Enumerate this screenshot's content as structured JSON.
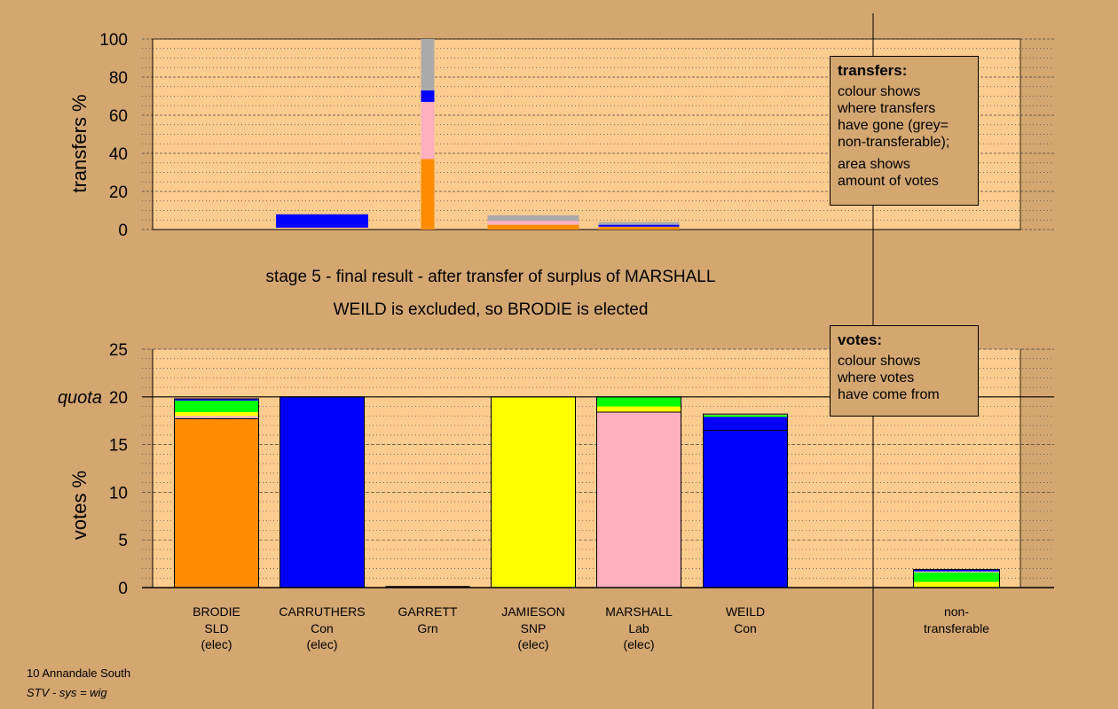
{
  "colors": {
    "background": "#D4A771",
    "plot_background": "#FFCC8F",
    "SLD": "#FF8C00",
    "Con": "#0000FF",
    "SNP": "#FFFF00",
    "Lab": "#FFB0C0",
    "Grn": "#00FF00",
    "non_transferable": "#AAAAAA"
  },
  "chart_data": [
    {
      "id": "transfers",
      "type": "bar",
      "stacked": true,
      "ylabel": "transfers %",
      "ylim": [
        0,
        100
      ],
      "yticks": [
        0,
        20,
        40,
        60,
        80,
        100
      ],
      "grid": "dotted",
      "categories": [
        "BRODIE",
        "CARRUTHERS",
        "GARRETT",
        "JAMIESON",
        "MARSHALL",
        "WEILD",
        "non-transferable"
      ],
      "width_shows": "amount of votes",
      "bars": [
        {
          "category": "CARRUTHERS",
          "segments": [
            {
              "to": "Con",
              "from_pct": 1,
              "to_pct": 8
            }
          ]
        },
        {
          "category": "GARRETT",
          "segments": [
            {
              "to": "SLD",
              "from_pct": 0,
              "to_pct": 37
            },
            {
              "to": "Lab",
              "from_pct": 37,
              "to_pct": 67
            },
            {
              "to": "Con",
              "from_pct": 67,
              "to_pct": 73
            },
            {
              "to": "non-transferable",
              "from_pct": 73,
              "to_pct": 100
            }
          ]
        },
        {
          "category": "JAMIESON",
          "segments": [
            {
              "to": "SLD",
              "from_pct": 0,
              "to_pct": 2.5
            },
            {
              "to": "Lab",
              "from_pct": 2.5,
              "to_pct": 4.5
            },
            {
              "to": "non-transferable",
              "from_pct": 4.5,
              "to_pct": 7.5
            }
          ]
        },
        {
          "category": "MARSHALL",
          "segments": [
            {
              "to": "SLD",
              "from_pct": 0,
              "to_pct": 1.5
            },
            {
              "to": "Con",
              "from_pct": 1.5,
              "to_pct": 2.5
            },
            {
              "to": "non-transferable",
              "from_pct": 2.5,
              "to_pct": 4
            }
          ]
        }
      ]
    },
    {
      "id": "votes",
      "type": "bar",
      "stacked": true,
      "ylabel": "votes %",
      "ylim": [
        0,
        25
      ],
      "yticks": [
        0,
        5,
        10,
        15,
        20,
        25
      ],
      "quota": 20,
      "quota_label": "quota",
      "grid": "dotted",
      "categories": [
        "BRODIE",
        "CARRUTHERS",
        "GARRETT",
        "JAMIESON",
        "MARSHALL",
        "WEILD",
        "non-transferable"
      ],
      "bars": [
        {
          "category": "BRODIE",
          "segments": [
            {
              "from": "SLD",
              "value": 17.7
            },
            {
              "from": "Lab",
              "value": 0.3
            },
            {
              "from": "SNP",
              "value": 0.4
            },
            {
              "from": "Grn",
              "value": 1.2
            },
            {
              "from": "Con",
              "value": 0.2
            }
          ]
        },
        {
          "category": "CARRUTHERS",
          "segments": [
            {
              "from": "Con",
              "value": 20
            }
          ]
        },
        {
          "category": "GARRETT",
          "segments": []
        },
        {
          "category": "JAMIESON",
          "segments": [
            {
              "from": "SNP",
              "value": 20
            }
          ]
        },
        {
          "category": "MARSHALL",
          "segments": [
            {
              "from": "Lab",
              "value": 18.4
            },
            {
              "from": "SNP",
              "value": 0.6
            },
            {
              "from": "Grn",
              "value": 1.0
            }
          ]
        },
        {
          "category": "WEILD",
          "segments": [
            {
              "from": "Con",
              "value": 17.9
            },
            {
              "from": "Grn",
              "value": 0.2
            },
            {
              "from": "Lab",
              "value": 0.1
            }
          ]
        },
        {
          "category": "non-transferable",
          "segments": [
            {
              "from": "SNP",
              "value": 0.6
            },
            {
              "from": "Grn",
              "value": 1.0
            },
            {
              "from": "Lab",
              "value": 0.1
            },
            {
              "from": "Con",
              "value": 0.2
            }
          ]
        }
      ],
      "inner_lines": [
        {
          "category": "BRODIE",
          "value": 17.7
        },
        {
          "category": "MARSHALL",
          "value": 18.4
        },
        {
          "category": "WEILD",
          "value": 16.5
        },
        {
          "category": "non-transferable",
          "value": 1.9
        }
      ]
    }
  ],
  "candidates": [
    {
      "name": "BRODIE",
      "party": "SLD",
      "status": "(elec)"
    },
    {
      "name": "CARRUTHERS",
      "party": "Con",
      "status": "(elec)"
    },
    {
      "name": "GARRETT",
      "party": "Grn",
      "status": ""
    },
    {
      "name": "JAMIESON",
      "party": "SNP",
      "status": "(elec)"
    },
    {
      "name": "MARSHALL",
      "party": "Lab",
      "status": "(elec)"
    },
    {
      "name": "WEILD",
      "party": "Con",
      "status": ""
    }
  ],
  "nontransferable_label": [
    "non-",
    "transferable"
  ],
  "stage_title": "stage 5 - final result - after transfer of surplus of MARSHALL",
  "stage_subtitle": "WEILD is excluded, so BRODIE is elected",
  "transfers_legend": {
    "title": "transfers:",
    "para1": [
      "colour shows",
      "where transfers",
      "have gone (grey=",
      "non-transferable);"
    ],
    "para2": [
      "area shows",
      "amount of votes"
    ]
  },
  "votes_legend": {
    "title": "votes:",
    "para1": [
      "colour shows",
      "where votes",
      "have come from"
    ]
  },
  "footer": {
    "ward": "10 Annandale South",
    "system": "STV - sys = wig"
  }
}
